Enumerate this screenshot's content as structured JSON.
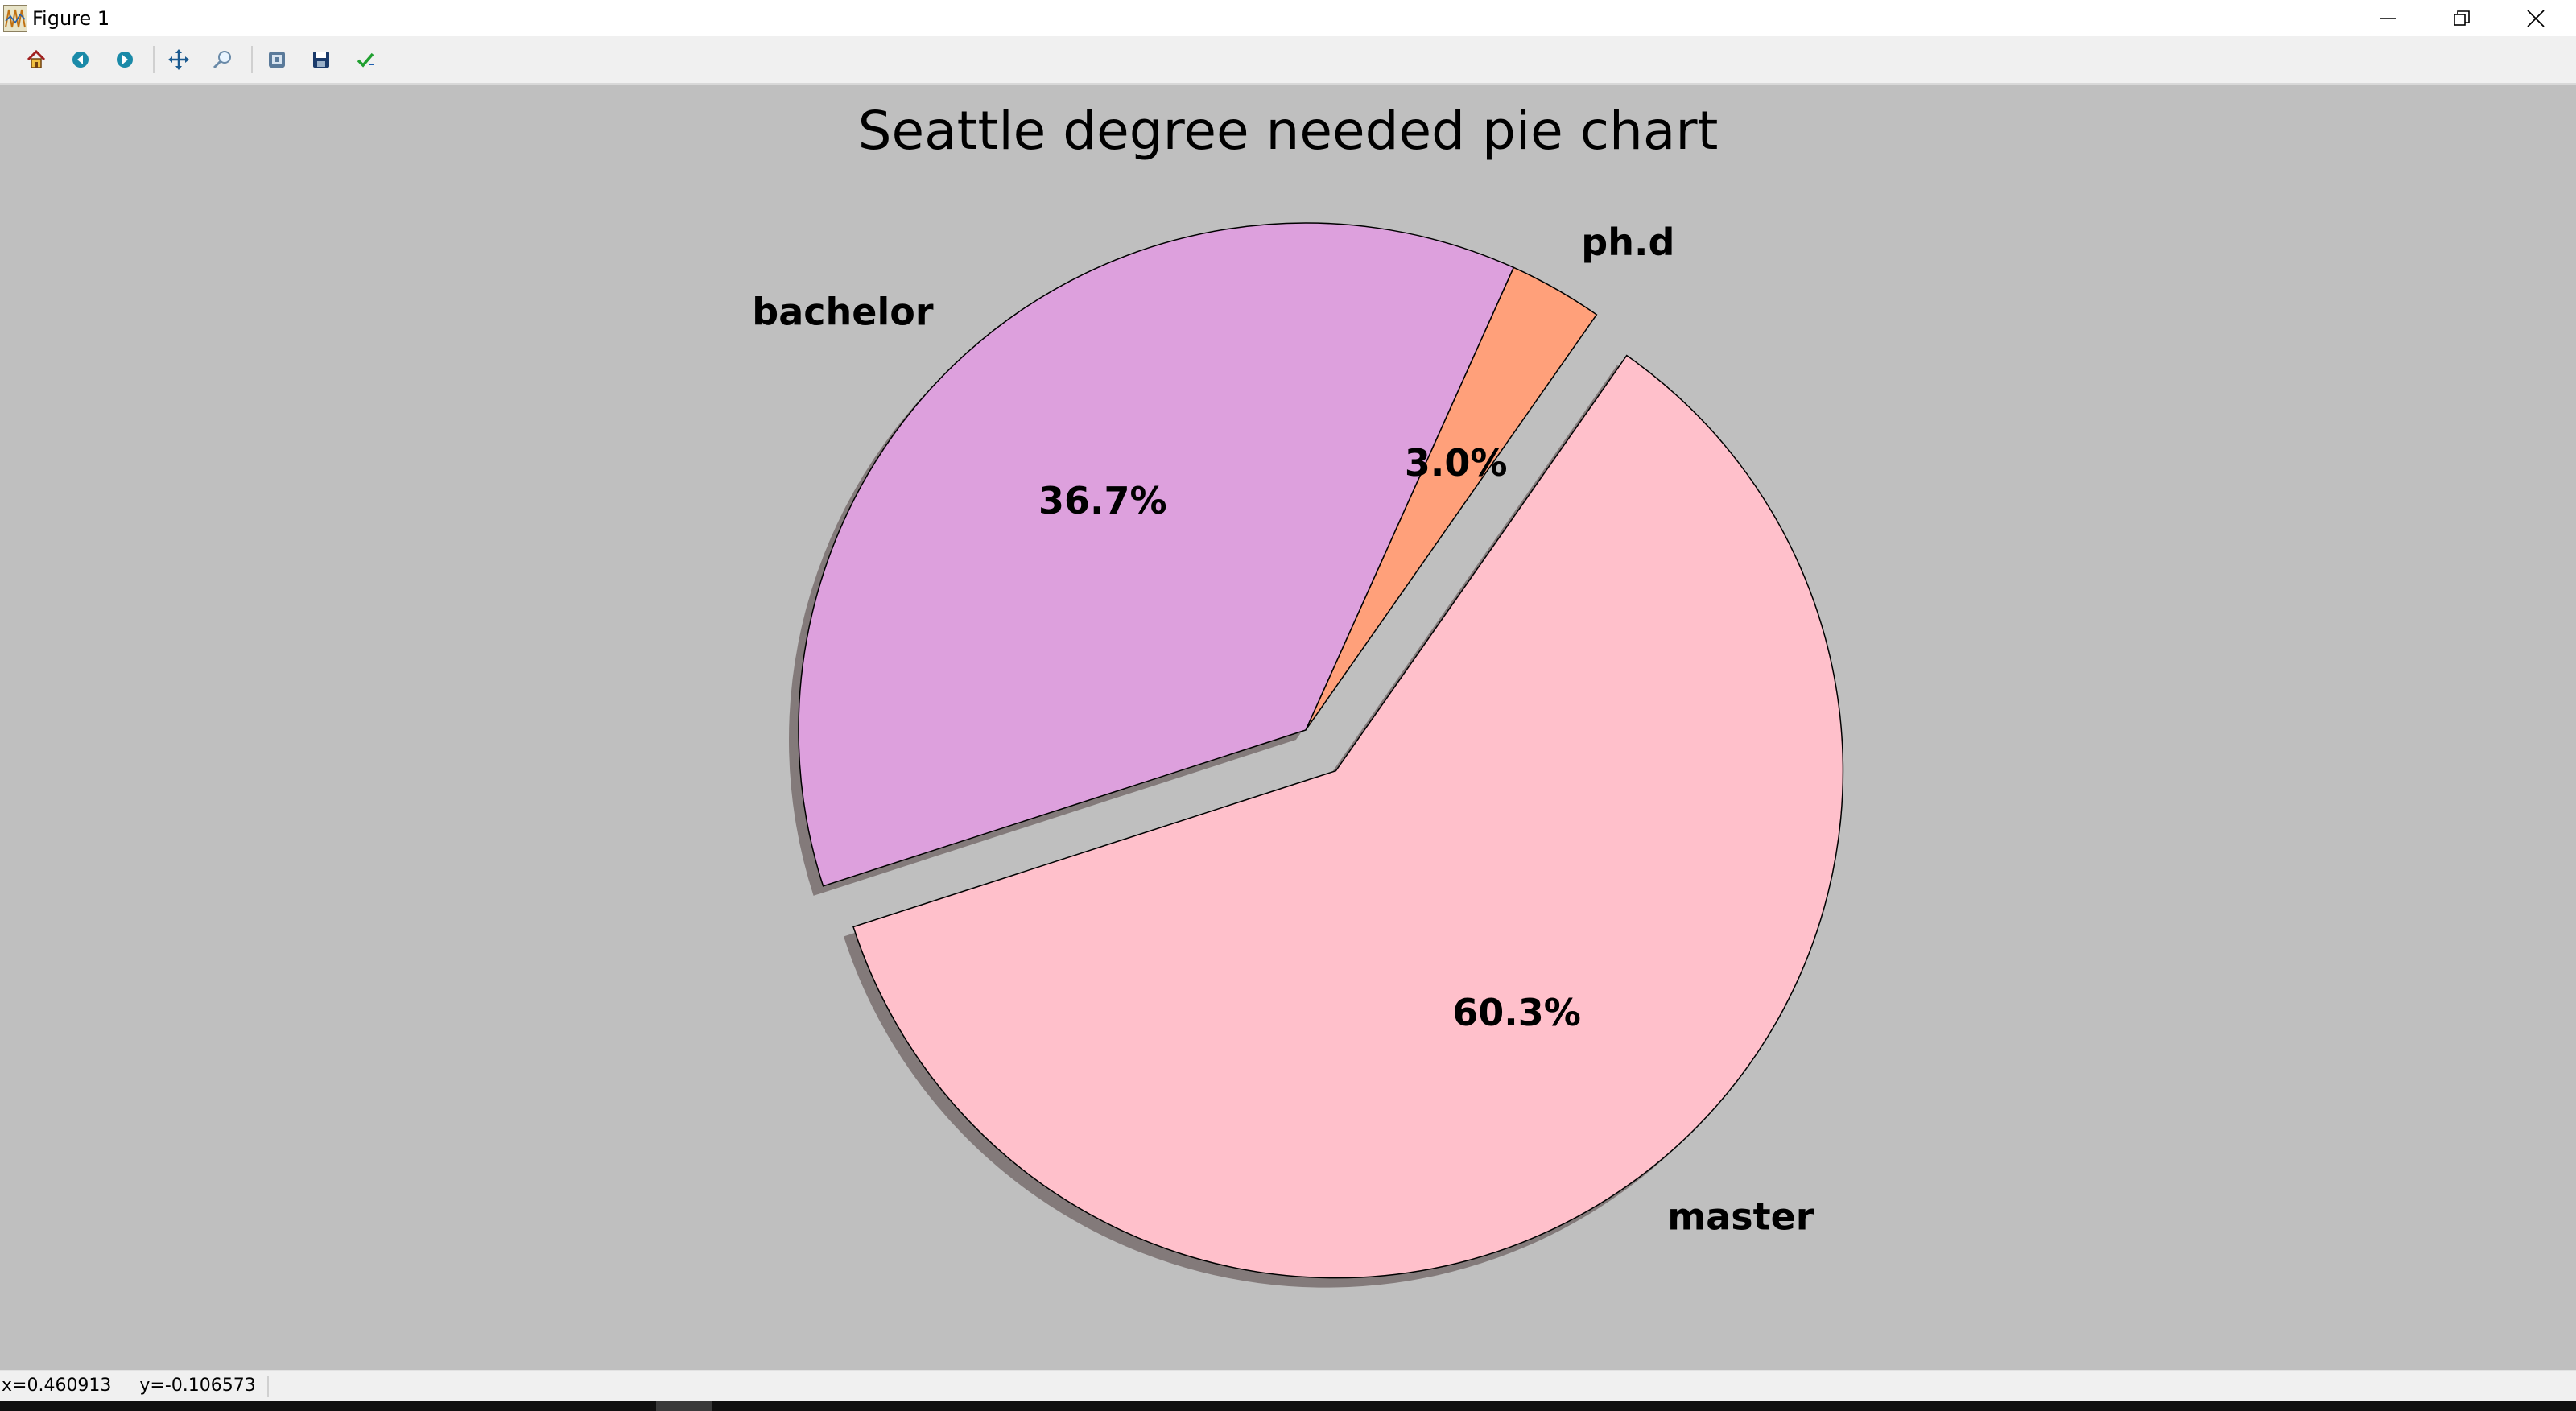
{
  "window": {
    "title": "Figure 1",
    "controls": {
      "minimize": "minimize-icon",
      "maximize": "restore-icon",
      "close": "close-icon"
    }
  },
  "toolbar": {
    "items": [
      {
        "name": "home-button",
        "icon": "home-icon"
      },
      {
        "name": "back-button",
        "icon": "back-arrow-icon"
      },
      {
        "name": "forward-button",
        "icon": "forward-arrow-icon"
      },
      {
        "name": "pan-button",
        "icon": "pan-arrows-icon"
      },
      {
        "name": "zoom-button",
        "icon": "zoom-icon"
      },
      {
        "name": "configure-subplots-button",
        "icon": "subplots-icon"
      },
      {
        "name": "save-figure-button",
        "icon": "floppy-disk-icon"
      },
      {
        "name": "edit-parameters-button",
        "icon": "checkmark-icon"
      }
    ]
  },
  "status": {
    "x_readout": "x=0.460913",
    "y_readout": "y=-0.106573"
  },
  "chart_data": {
    "type": "pie",
    "title": "Seattle degree needed pie chart",
    "start_angle_deg": 55,
    "direction": "counterclockwise",
    "shadow": true,
    "slices": [
      {
        "label": "ph.d",
        "value": 3.0,
        "pct_label": "3.0%",
        "color": "#ffa07a",
        "explode": 0.0
      },
      {
        "label": "bachelor",
        "value": 36.7,
        "pct_label": "36.7%",
        "color": "#dda0dd",
        "explode": 0.0
      },
      {
        "label": "master",
        "value": 60.3,
        "pct_label": "60.3%",
        "color": "#ffc0cb",
        "explode": 0.1
      }
    ],
    "background": "#bfbfbf",
    "edge_color": "#000000"
  }
}
